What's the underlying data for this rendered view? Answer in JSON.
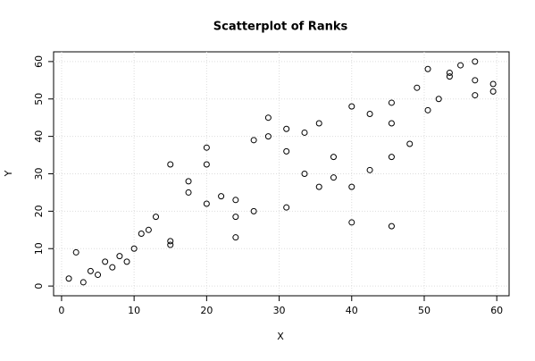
{
  "chart_data": {
    "type": "scatter",
    "title": "Scatterplot of Ranks",
    "x_label": "X",
    "y_label": "Y",
    "x": [
      1,
      2,
      3,
      4,
      5,
      6,
      7,
      8,
      9,
      10,
      11,
      12,
      13,
      15,
      15,
      15,
      17.5,
      17.5,
      20,
      20,
      20,
      22,
      24,
      24,
      24,
      26.5,
      26.5,
      28.5,
      28.5,
      31,
      31,
      31,
      33.5,
      33.5,
      35.5,
      35.5,
      37.5,
      37.5,
      40,
      40,
      40,
      42.5,
      42.5,
      45.5,
      45.5,
      45.5,
      45.5,
      48,
      49,
      50.5,
      50.5,
      52,
      53.5,
      53.5,
      55,
      57,
      57,
      57,
      59.5,
      59.5
    ],
    "values": [
      2,
      9,
      1,
      4,
      3,
      6.5,
      5,
      8,
      6.5,
      10,
      14,
      15,
      18.5,
      12,
      11,
      32.5,
      28,
      25,
      37,
      32.5,
      22,
      24,
      23,
      18.5,
      13,
      39,
      20,
      45,
      40,
      42,
      36,
      21,
      41,
      30,
      43.5,
      26.5,
      34.5,
      29,
      48,
      26.5,
      17,
      46,
      31,
      49,
      43.5,
      34.5,
      16,
      38,
      53,
      58,
      47,
      50,
      57,
      56,
      59,
      60,
      55,
      51,
      54,
      52
    ],
    "color": "#000000",
    "xlim": [
      -1.1,
      61.7
    ],
    "ylim": [
      -2.6,
      62.6
    ],
    "xticks": [
      0,
      10,
      20,
      30,
      40,
      50,
      60
    ],
    "yticks": [
      0,
      10,
      20,
      30,
      40,
      50,
      60
    ],
    "grid": true
  }
}
